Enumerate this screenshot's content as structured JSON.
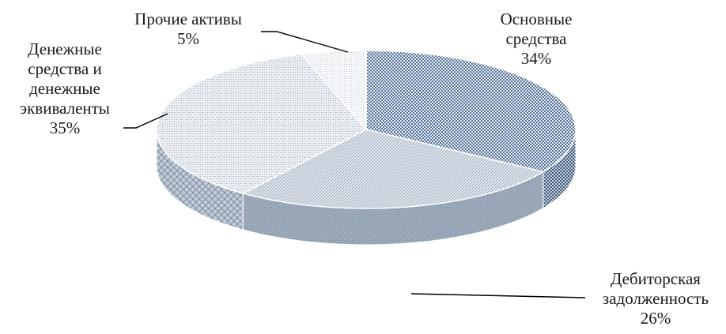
{
  "chart_data": {
    "type": "pie",
    "three_d": true,
    "slices": [
      {
        "lines": [
          "Основные",
          "средства"
        ],
        "value": 34,
        "value_label": "34%",
        "color": "#5d7a9c",
        "pattern": "dense-check"
      },
      {
        "lines": [
          "Дебиторская",
          "задолженность"
        ],
        "value": 26,
        "value_label": "26%",
        "color": "#a8b4c4",
        "pattern": "diagonal"
      },
      {
        "lines": [
          "Денежные",
          "средства и",
          "денежные",
          "эквиваленты"
        ],
        "value": 35,
        "value_label": "35%",
        "color": "#c9d1db",
        "pattern": "weave"
      },
      {
        "lines": [
          "Прочие активы"
        ],
        "value": 5,
        "value_label": "5%",
        "color": "#dfe4ea",
        "pattern": "dots"
      }
    ],
    "legend": "none"
  }
}
